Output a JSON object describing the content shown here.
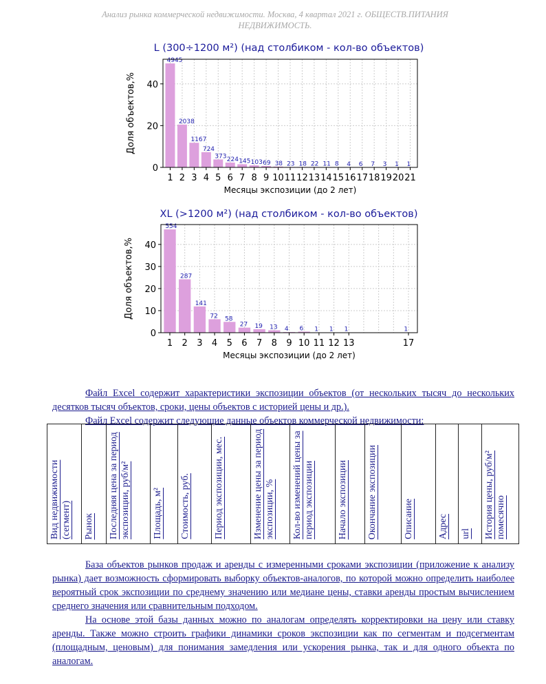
{
  "header": {
    "line1": "Анализ рынка коммерческой недвижимости.  Москва,  4 квартал 2021 г.  ОБЩЕСТВ.ПИТАНИЯ",
    "line2": "НЕДВИЖИМОСТЬ."
  },
  "chart_data": [
    {
      "type": "bar",
      "title": "L (300÷1200 м²) (над столбиком - кол-во объектов)",
      "xlabel": "Месяцы экспозиции (до 2 лет)",
      "ylabel": "Доля объектов,%",
      "x": [
        1,
        2,
        3,
        4,
        5,
        6,
        7,
        8,
        9,
        10,
        11,
        12,
        13,
        14,
        15,
        16,
        17,
        18,
        19,
        20,
        21
      ],
      "values": [
        49.8,
        20.5,
        11.8,
        7.3,
        3.8,
        2.3,
        1.5,
        1.0,
        0.7,
        0.4,
        0.2,
        0.2,
        0.2,
        0.1,
        0.1,
        0.04,
        0.06,
        0.07,
        0.03,
        0.01,
        0.01
      ],
      "labels": [
        "4945",
        "2038",
        "1167",
        "724",
        "373",
        "224",
        "145",
        "103",
        "69",
        "38",
        "23",
        "18",
        "22",
        "11",
        "8",
        "4",
        "6",
        "7",
        "3",
        "1",
        "1"
      ],
      "xlim": [
        0.4,
        21.6
      ],
      "ylim": [
        0,
        51.8
      ],
      "yticks": [
        0,
        20,
        40
      ],
      "grid": true,
      "bar_color": "#dda0dd",
      "label_color": "#2020b0"
    },
    {
      "type": "bar",
      "title": "XL (>1200 м²) (над столбиком - кол-во объектов)",
      "xlabel": "Месяцы экспозиции (до 2 лет)",
      "ylabel": "Доля объектов,%",
      "x": [
        1,
        2,
        3,
        4,
        5,
        6,
        7,
        8,
        9,
        10,
        11,
        12,
        13,
        17
      ],
      "values": [
        46.8,
        24.2,
        11.9,
        6.1,
        4.9,
        2.3,
        1.6,
        1.1,
        0.3,
        0.5,
        0.1,
        0.1,
        0.1,
        0.1
      ],
      "labels": [
        "554",
        "287",
        "141",
        "72",
        "58",
        "27",
        "19",
        "13",
        "4",
        "6",
        "1",
        "1",
        "1",
        "1"
      ],
      "xlim": [
        0.4,
        17.6
      ],
      "ylim": [
        0,
        49
      ],
      "yticks": [
        0,
        10,
        20,
        30,
        40
      ],
      "grid": true,
      "bar_color": "#dda0dd",
      "label_color": "#2020b0"
    }
  ],
  "intro": {
    "p1": "Файл Excel содержит характеристики экспозиции объектов (от нескольких тысяч до нескольких десятков тысяч объектов, сроки, цены объектов с историей цены и др.).",
    "p2": "Файл Excel содержит следующие данные объектов коммерческой недвижимости:"
  },
  "table_columns": [
    "Вид недвижимости (сегмент)",
    "Рынок",
    "Последняя цена за период экспозиции, руб/м²",
    "Площадь, м²",
    "Стоимость, руб.",
    "Период экспозиции, мес.",
    "Изменение цены за период экспозиции, %",
    "Кол-во изменений цены за период экспозиции",
    "Начало экспозиции",
    "Окончание экспозиции",
    "Описание",
    "Адрес",
    "url",
    "История цены, руб/м² помесячно"
  ],
  "outro": {
    "p1": "База объектов рынков продаж и аренды с измеренными сроками экспозиции (приложение к анализу рынка) дает возможность сформировать выборку объектов-аналогов, по которой можно определить наиболее вероятный срок экспозиции по среднему значению или медиане цены, ставки аренды простым вычислением среднего значения или сравнительным подходом.",
    "p2": "На основе этой базы данных можно по аналогам определять корректировки на цену или ставку аренды. Также можно строить графики динамики сроков экспозиции как по сегментам и подсегментам (площадным, ценовым) для понимания замедления или ускорения рынка, так и для одного объекта по аналогам."
  }
}
